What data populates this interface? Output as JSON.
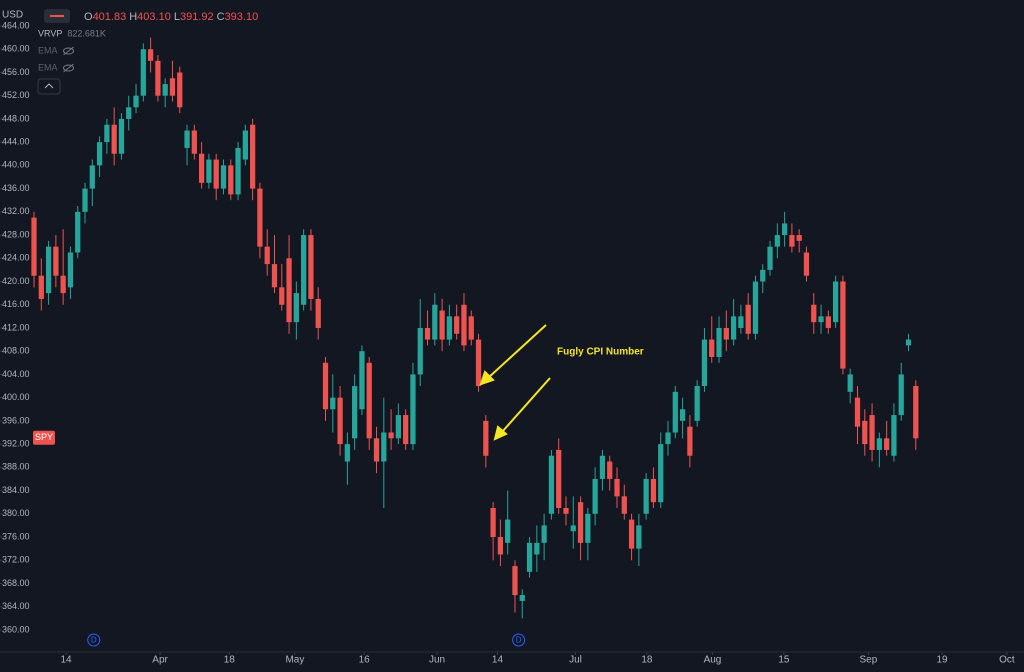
{
  "chart_data": {
    "type": "candlestick",
    "currency": "USD",
    "legend_ohlc": [
      {
        "key": "O",
        "value": "401.83"
      },
      {
        "key": "H",
        "value": "403.10"
      },
      {
        "key": "L",
        "value": "391.92"
      },
      {
        "key": "C",
        "value": "393.10"
      }
    ],
    "indicators": [
      {
        "name": "VRVP",
        "value": "822.681K"
      },
      {
        "name": "EMA"
      },
      {
        "name": "EMA"
      }
    ],
    "annotation": "Fugly CPI Number",
    "symbol_tag": {
      "label": "SPY",
      "value": 393.1
    },
    "event_markers": [
      {
        "label": "D",
        "x": 8.2
      },
      {
        "label": "D",
        "x": 66.5
      }
    ],
    "up_color": "#26a69a",
    "down_color": "#ef5350",
    "grid": false,
    "ylim": [
      356.2,
      467.1
    ],
    "yticks": [
      {
        "value": 360,
        "label": "360.00"
      },
      {
        "value": 364,
        "label": "364.00"
      },
      {
        "value": 368,
        "label": "368.00"
      },
      {
        "value": 372,
        "label": "372.00"
      },
      {
        "value": 376,
        "label": "376.00"
      },
      {
        "value": 380,
        "label": "380.00"
      },
      {
        "value": 384,
        "label": "384.00"
      },
      {
        "value": 388,
        "label": "388.00"
      },
      {
        "value": 392,
        "label": "392.00"
      },
      {
        "value": 396,
        "label": "396.00"
      },
      {
        "value": 400,
        "label": "400.00"
      },
      {
        "value": 404,
        "label": "404.00"
      },
      {
        "value": 408,
        "label": "408.00"
      },
      {
        "value": 412,
        "label": "412.00"
      },
      {
        "value": 416,
        "label": "416.00"
      },
      {
        "value": 420,
        "label": "420.00"
      },
      {
        "value": 424,
        "label": "424.00"
      },
      {
        "value": 428,
        "label": "428.00"
      },
      {
        "value": 432,
        "label": "432.00"
      },
      {
        "value": 436,
        "label": "436.00"
      },
      {
        "value": 440,
        "label": "440.00"
      },
      {
        "value": 444,
        "label": "444.00"
      },
      {
        "value": 448,
        "label": "448.00"
      },
      {
        "value": 452,
        "label": "452.00"
      },
      {
        "value": 456,
        "label": "456.00"
      },
      {
        "value": 460,
        "label": "460.00"
      },
      {
        "value": 464,
        "label": "464.00"
      }
    ],
    "xlim": [
      -0.55,
      135.3
    ],
    "xticks": [
      {
        "value": 4.4,
        "label": "14"
      },
      {
        "value": 17.3,
        "label": "Apr"
      },
      {
        "value": 26.8,
        "label": "18"
      },
      {
        "value": 35.8,
        "label": "May"
      },
      {
        "value": 45.3,
        "label": "16"
      },
      {
        "value": 55.3,
        "label": "Jun"
      },
      {
        "value": 63.6,
        "label": "14"
      },
      {
        "value": 74.3,
        "label": "Jul"
      },
      {
        "value": 84.1,
        "label": "18"
      },
      {
        "value": 93.1,
        "label": "Aug"
      },
      {
        "value": 102.9,
        "label": "15"
      },
      {
        "value": 114.5,
        "label": "Sep"
      },
      {
        "value": 124.6,
        "label": "19"
      },
      {
        "value": 133.5,
        "label": "Oct"
      }
    ],
    "ohlc": [
      [
        431,
        432,
        419,
        421
      ],
      [
        421,
        424,
        415,
        417
      ],
      [
        418,
        427,
        416,
        426
      ],
      [
        426,
        428,
        419,
        421
      ],
      [
        421,
        429,
        416,
        418
      ],
      [
        419,
        426,
        417,
        425
      ],
      [
        425,
        433,
        424,
        432
      ],
      [
        432,
        437,
        430,
        436
      ],
      [
        436,
        441,
        433,
        440
      ],
      [
        440,
        445,
        438,
        444
      ],
      [
        444,
        448,
        442,
        447
      ],
      [
        447,
        450,
        440,
        442
      ],
      [
        442,
        449,
        441,
        448
      ],
      [
        448,
        452,
        446,
        450
      ],
      [
        450,
        454,
        449,
        452
      ],
      [
        452,
        461,
        451,
        460
      ],
      [
        460,
        462,
        456,
        458
      ],
      [
        458,
        459,
        451,
        452
      ],
      [
        452,
        455,
        450,
        454
      ],
      [
        455,
        458,
        451,
        452
      ],
      [
        456,
        457,
        449,
        450
      ],
      [
        443,
        447,
        440,
        446
      ],
      [
        446,
        447,
        441,
        442
      ],
      [
        442,
        444,
        436,
        437
      ],
      [
        437,
        442,
        436,
        441
      ],
      [
        441,
        442,
        434,
        436
      ],
      [
        436,
        441,
        435,
        440
      ],
      [
        440,
        441,
        434,
        435
      ],
      [
        435,
        444,
        434,
        443
      ],
      [
        441,
        447,
        440,
        446
      ],
      [
        447,
        448,
        434,
        436
      ],
      [
        436,
        437,
        424,
        426
      ],
      [
        426,
        429,
        421,
        423
      ],
      [
        423,
        428,
        418,
        419
      ],
      [
        419,
        423,
        415,
        416
      ],
      [
        424,
        428,
        411,
        413
      ],
      [
        413,
        420,
        410,
        418
      ],
      [
        416,
        429,
        415,
        428
      ],
      [
        428,
        429,
        415,
        417
      ],
      [
        417,
        419,
        410,
        412
      ],
      [
        406,
        407,
        396,
        398
      ],
      [
        398,
        404,
        394,
        400
      ],
      [
        400,
        402,
        390,
        392
      ],
      [
        389,
        394,
        385,
        392
      ],
      [
        393,
        404,
        391,
        402
      ],
      [
        398,
        409,
        397,
        408
      ],
      [
        406,
        407,
        391,
        393
      ],
      [
        393,
        395,
        387,
        389
      ],
      [
        389,
        400,
        381,
        394
      ],
      [
        394,
        398,
        391,
        393
      ],
      [
        393,
        399,
        392,
        397
      ],
      [
        397,
        398,
        391,
        392
      ],
      [
        392,
        406,
        391,
        404
      ],
      [
        404,
        417,
        402,
        412
      ],
      [
        412,
        415,
        409,
        410
      ],
      [
        410,
        418,
        409,
        416
      ],
      [
        415,
        417,
        408,
        410
      ],
      [
        410,
        416,
        409,
        414
      ],
      [
        414,
        416,
        410,
        411
      ],
      [
        416,
        418,
        408,
        409
      ],
      [
        414,
        415,
        409,
        410
      ],
      [
        410,
        411,
        401,
        402
      ],
      [
        396,
        397,
        388,
        390
      ],
      [
        381,
        382,
        372,
        376
      ],
      [
        376,
        379,
        371,
        373
      ],
      [
        375,
        384,
        373,
        379
      ],
      [
        371,
        372,
        363,
        366
      ],
      [
        365,
        367,
        362,
        366
      ],
      [
        370,
        376,
        369,
        375
      ],
      [
        373,
        378,
        370,
        375
      ],
      [
        375,
        380,
        372,
        378
      ],
      [
        380,
        391,
        379,
        390
      ],
      [
        391,
        393,
        380,
        381
      ],
      [
        381,
        383,
        378,
        380
      ],
      [
        377,
        383,
        374,
        378
      ],
      [
        382,
        383,
        372,
        375
      ],
      [
        375,
        381,
        372,
        380
      ],
      [
        380,
        388,
        378,
        386
      ],
      [
        386,
        391,
        384,
        390
      ],
      [
        389,
        390,
        384,
        386
      ],
      [
        386,
        388,
        381,
        383
      ],
      [
        383,
        385,
        379,
        380
      ],
      [
        379,
        380,
        372,
        374
      ],
      [
        374,
        380,
        371,
        378
      ],
      [
        380,
        387,
        379,
        386
      ],
      [
        386,
        388,
        381,
        382
      ],
      [
        382,
        394,
        381,
        392
      ],
      [
        392,
        396,
        390,
        394
      ],
      [
        394,
        402,
        393,
        401
      ],
      [
        396,
        400,
        393,
        398
      ],
      [
        395,
        397,
        388,
        390
      ],
      [
        396,
        403,
        395,
        402
      ],
      [
        402,
        412,
        401,
        410
      ],
      [
        410,
        414,
        406,
        407
      ],
      [
        407,
        414,
        406,
        412
      ],
      [
        412,
        415,
        408,
        410
      ],
      [
        410,
        417,
        409,
        414
      ],
      [
        412,
        416,
        411,
        414
      ],
      [
        416,
        418,
        410,
        411
      ],
      [
        411,
        421,
        410,
        420
      ],
      [
        420,
        423,
        418,
        422
      ],
      [
        422,
        427,
        421,
        426
      ],
      [
        426,
        430,
        424,
        428
      ],
      [
        428,
        432,
        426,
        430
      ],
      [
        428,
        430,
        425,
        426
      ],
      [
        428,
        429,
        425,
        427
      ],
      [
        425,
        426,
        420,
        421
      ],
      [
        416,
        418,
        411,
        413
      ],
      [
        413,
        416,
        411,
        414
      ],
      [
        414,
        415,
        411,
        412
      ],
      [
        413,
        421,
        412,
        420
      ],
      [
        420,
        421,
        404,
        405
      ],
      [
        401,
        405,
        399,
        404
      ],
      [
        400,
        402,
        392,
        395
      ],
      [
        396,
        398,
        390,
        392
      ],
      [
        397,
        399,
        389,
        391
      ],
      [
        391,
        394,
        388,
        393
      ],
      [
        393,
        396,
        390,
        391
      ],
      [
        390,
        399,
        389,
        397
      ],
      [
        397,
        406,
        396,
        404
      ],
      [
        409,
        411,
        408,
        410
      ],
      [
        402,
        403,
        391,
        393
      ]
    ]
  }
}
